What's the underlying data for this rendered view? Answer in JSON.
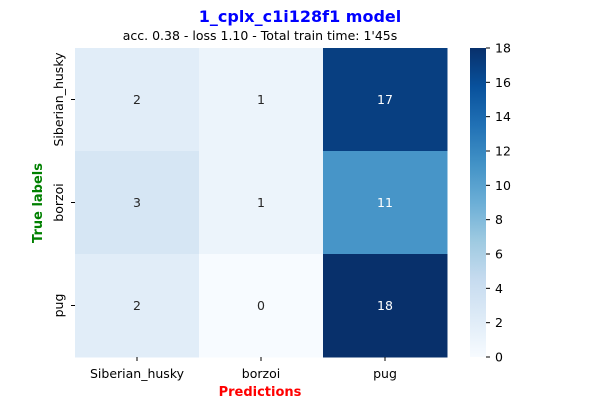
{
  "chart_data": {
    "type": "heatmap",
    "title": "1_cplx_c1i128f1 model",
    "subtitle": "acc. 0.38 - loss 1.10 - Total train time: 1'45s",
    "xlabel": "Predictions",
    "ylabel": "True labels",
    "x_categories": [
      "Siberian_husky",
      "borzoi",
      "pug"
    ],
    "y_categories": [
      "Siberian_husky",
      "borzoi",
      "pug"
    ],
    "values": [
      [
        2,
        1,
        17
      ],
      [
        3,
        1,
        11
      ],
      [
        2,
        0,
        18
      ]
    ],
    "colormap": "Blues",
    "colorbar": {
      "min": 0,
      "max": 18,
      "ticks": [
        0,
        2,
        4,
        6,
        8,
        10,
        12,
        14,
        16,
        18
      ]
    },
    "colors": {
      "title": "#0000ff",
      "xlabel": "#ff0000",
      "ylabel": "#008000"
    }
  }
}
